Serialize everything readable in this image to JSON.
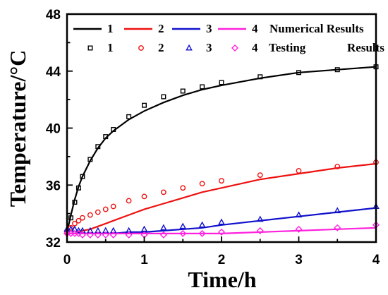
{
  "chart_data": {
    "type": "line",
    "xlabel": "Time/h",
    "ylabel": "Temperature/°C",
    "xlim": [
      0,
      4
    ],
    "ylim": [
      32,
      48
    ],
    "xticks": [
      "0",
      "1",
      "2",
      "3",
      "4"
    ],
    "yticks": [
      "32",
      "36",
      "40",
      "44",
      "48"
    ],
    "grid": false,
    "legend_position": "top-right",
    "legend": {
      "line_numbers": [
        "1",
        "2",
        "3",
        "4"
      ],
      "line_label": "Numerical Results",
      "marker_numbers": [
        "1",
        "2",
        "3",
        "4"
      ],
      "marker_label_a": "Testing",
      "marker_label_b": "Results"
    },
    "colors": [
      "#000000",
      "#ee1111",
      "#1111cc",
      "#ff22dd"
    ],
    "markers": [
      "square",
      "circle",
      "triangle",
      "diamond"
    ],
    "x": [
      0,
      0.05,
      0.1,
      0.15,
      0.2,
      0.3,
      0.4,
      0.5,
      0.6,
      0.8,
      1.0,
      1.25,
      1.5,
      1.75,
      2.0,
      2.5,
      3.0,
      3.5,
      4.0
    ],
    "series": [
      {
        "name": "1",
        "kind": "numerical",
        "values": [
          32.7,
          33.9,
          35.0,
          35.9,
          36.6,
          37.7,
          38.6,
          39.3,
          39.8,
          40.6,
          41.2,
          41.8,
          42.3,
          42.7,
          43.0,
          43.5,
          43.9,
          44.1,
          44.3
        ]
      },
      {
        "name": "2",
        "kind": "numerical",
        "values": [
          32.6,
          32.6,
          32.6,
          32.7,
          32.8,
          32.9,
          33.1,
          33.3,
          33.5,
          33.9,
          34.3,
          34.7,
          35.1,
          35.5,
          35.8,
          36.4,
          36.8,
          37.2,
          37.5
        ]
      },
      {
        "name": "3",
        "kind": "numerical",
        "values": [
          32.6,
          32.6,
          32.6,
          32.6,
          32.6,
          32.6,
          32.6,
          32.6,
          32.6,
          32.7,
          32.7,
          32.8,
          32.9,
          33.0,
          33.2,
          33.5,
          33.8,
          34.1,
          34.4
        ]
      },
      {
        "name": "4",
        "kind": "numerical",
        "values": [
          32.6,
          32.6,
          32.6,
          32.6,
          32.6,
          32.6,
          32.6,
          32.6,
          32.6,
          32.6,
          32.6,
          32.6,
          32.6,
          32.6,
          32.6,
          32.7,
          32.8,
          32.9,
          33.0
        ]
      },
      {
        "name": "1",
        "kind": "testing",
        "values": [
          32.7,
          33.7,
          34.8,
          35.8,
          36.6,
          37.8,
          38.7,
          39.4,
          39.9,
          40.8,
          41.6,
          42.2,
          42.6,
          42.9,
          43.2,
          43.6,
          43.9,
          44.1,
          44.3
        ]
      },
      {
        "name": "2",
        "kind": "testing",
        "values": [
          32.7,
          33.0,
          33.3,
          33.5,
          33.7,
          33.9,
          34.1,
          34.3,
          34.5,
          34.9,
          35.2,
          35.5,
          35.8,
          36.1,
          36.3,
          36.7,
          37.0,
          37.3,
          37.6
        ]
      },
      {
        "name": "3",
        "kind": "testing",
        "values": [
          32.9,
          32.9,
          32.9,
          32.8,
          32.8,
          32.8,
          32.8,
          32.8,
          32.8,
          32.8,
          32.9,
          33.0,
          33.1,
          33.2,
          33.4,
          33.6,
          33.9,
          34.2,
          34.5
        ]
      },
      {
        "name": "4",
        "kind": "testing",
        "values": [
          32.6,
          32.6,
          32.6,
          32.6,
          32.5,
          32.5,
          32.5,
          32.5,
          32.5,
          32.5,
          32.5,
          32.5,
          32.6,
          32.6,
          32.7,
          32.8,
          32.9,
          33.0,
          33.2
        ]
      }
    ]
  }
}
